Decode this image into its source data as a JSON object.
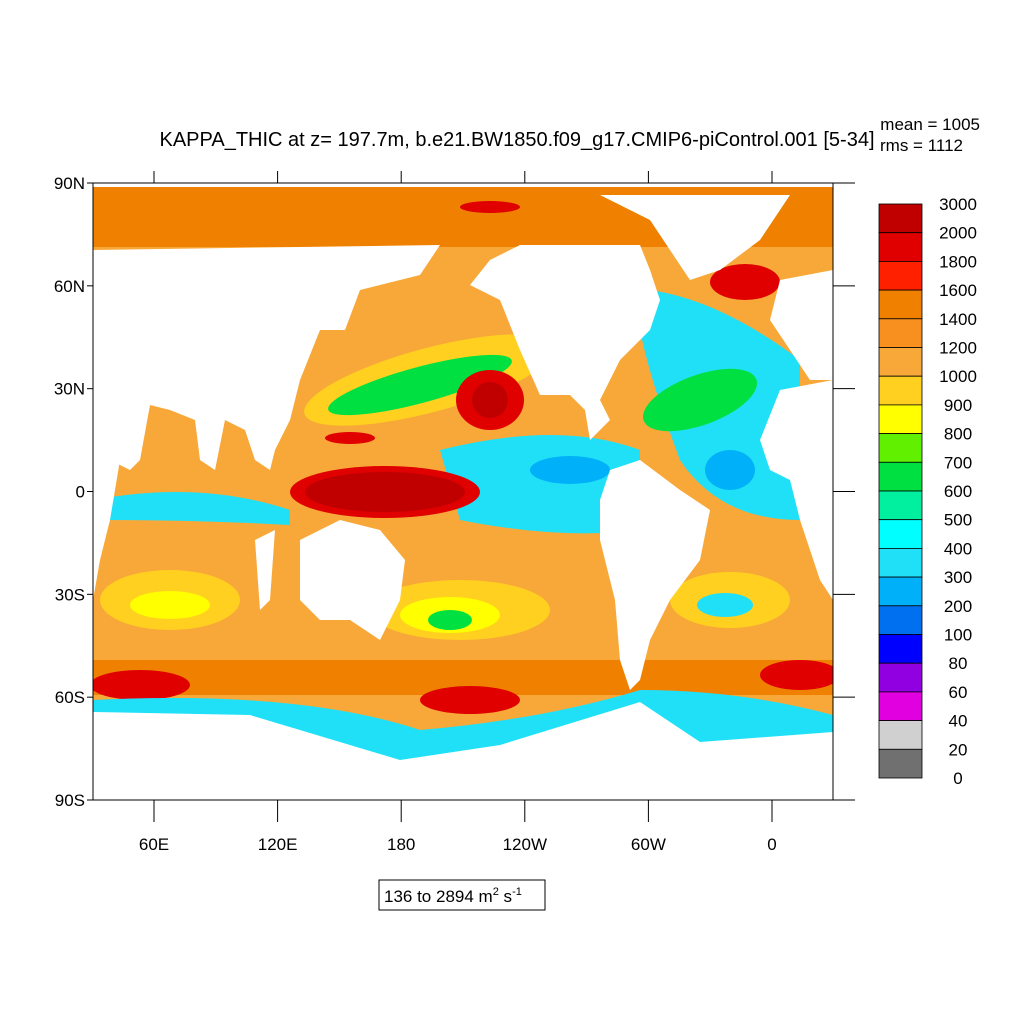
{
  "title": "KAPPA_THIC at z= 197.7m, b.e21.BW1850.f09_g17.CMIP6-piControl.001 [5-34]",
  "stats": {
    "mean": "mean = 1005",
    "rms": "rms = 1112"
  },
  "lat_labels": [
    "90N",
    "60N",
    "30N",
    "0",
    "30S",
    "60S",
    "90S"
  ],
  "lon_labels": [
    "60E",
    "120E",
    "180",
    "120W",
    "60W",
    "0"
  ],
  "colorbar": {
    "levels": [
      3000,
      2000,
      1800,
      1600,
      1400,
      1200,
      1000,
      900,
      800,
      700,
      600,
      500,
      400,
      300,
      200,
      100,
      80,
      60,
      40,
      20,
      0
    ],
    "colors": [
      "#c00000",
      "#e00000",
      "#ff2000",
      "#f08000",
      "#f89020",
      "#f8a838",
      "#ffd020",
      "#ffff00",
      "#60f000",
      "#00e040",
      "#00f0a0",
      "#00ffff",
      "#20e0f8",
      "#00b0f8",
      "#0070f0",
      "#0000ff",
      "#9000e0",
      "#e000e0",
      "#d0d0d0",
      "#707070"
    ]
  },
  "range_label": {
    "text": "136 to 2894 m",
    "sup1": "2",
    "mid": " s",
    "sup2": "-1"
  }
}
